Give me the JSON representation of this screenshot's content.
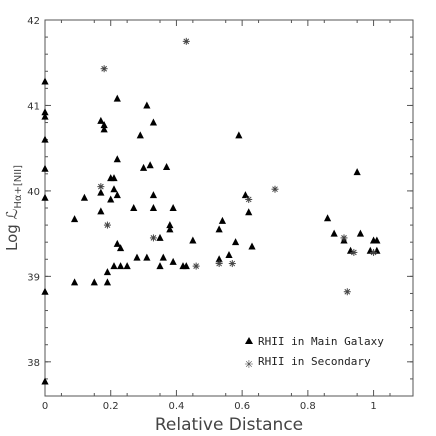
{
  "chart_data": {
    "type": "scatter",
    "title": "",
    "xlabel": "Relative Distance",
    "ylabel_main": "Log ℒ",
    "ylabel_sub": "Hα+[NII]",
    "xlim": [
      0,
      1.12
    ],
    "ylim": [
      37.6,
      42
    ],
    "xticks": [
      0,
      0.2,
      0.4,
      0.6,
      0.8,
      1
    ],
    "xtick_labels": [
      "0",
      "0.2",
      "0.4",
      "0.6",
      "0.8",
      "1"
    ],
    "yticks": [
      38,
      39,
      40,
      41,
      42
    ],
    "ytick_labels": [
      "38",
      "39",
      "40",
      "41",
      "42"
    ],
    "legend_position": "lower-right",
    "series": [
      {
        "name": "RHII in Main Galaxy",
        "marker": "triangle",
        "color": "#000000",
        "points": [
          [
            0,
            41.28
          ],
          [
            0,
            40.92
          ],
          [
            0,
            40.87
          ],
          [
            0,
            40.6
          ],
          [
            0,
            40.26
          ],
          [
            0,
            39.92
          ],
          [
            0,
            38.82
          ],
          [
            0,
            37.77
          ],
          [
            0.09,
            39.67
          ],
          [
            0.09,
            38.93
          ],
          [
            0.12,
            39.92
          ],
          [
            0.15,
            38.93
          ],
          [
            0.17,
            39.76
          ],
          [
            0.17,
            39.98
          ],
          [
            0.17,
            40.82
          ],
          [
            0.18,
            40.77
          ],
          [
            0.18,
            40.72
          ],
          [
            0.19,
            39.05
          ],
          [
            0.19,
            38.93
          ],
          [
            0.2,
            39.9
          ],
          [
            0.2,
            40.15
          ],
          [
            0.21,
            40.15
          ],
          [
            0.21,
            39.12
          ],
          [
            0.21,
            40.02
          ],
          [
            0.22,
            41.08
          ],
          [
            0.22,
            39.95
          ],
          [
            0.22,
            40.37
          ],
          [
            0.22,
            39.38
          ],
          [
            0.23,
            39.33
          ],
          [
            0.23,
            39.12
          ],
          [
            0.25,
            39.12
          ],
          [
            0.27,
            39.8
          ],
          [
            0.28,
            39.22
          ],
          [
            0.29,
            40.65
          ],
          [
            0.3,
            40.27
          ],
          [
            0.31,
            41.0
          ],
          [
            0.31,
            39.22
          ],
          [
            0.32,
            40.3
          ],
          [
            0.33,
            39.95
          ],
          [
            0.33,
            39.8
          ],
          [
            0.33,
            40.8
          ],
          [
            0.35,
            39.12
          ],
          [
            0.35,
            39.45
          ],
          [
            0.36,
            39.22
          ],
          [
            0.37,
            40.28
          ],
          [
            0.38,
            39.6
          ],
          [
            0.38,
            39.55
          ],
          [
            0.39,
            39.8
          ],
          [
            0.39,
            39.17
          ],
          [
            0.42,
            39.12
          ],
          [
            0.43,
            39.12
          ],
          [
            0.45,
            39.42
          ],
          [
            0.53,
            39.2
          ],
          [
            0.53,
            39.55
          ],
          [
            0.54,
            39.65
          ],
          [
            0.56,
            39.25
          ],
          [
            0.58,
            39.4
          ],
          [
            0.59,
            40.65
          ],
          [
            0.61,
            39.95
          ],
          [
            0.62,
            39.75
          ],
          [
            0.63,
            39.35
          ],
          [
            0.86,
            39.68
          ],
          [
            0.88,
            39.5
          ],
          [
            0.91,
            39.42
          ],
          [
            0.93,
            39.3
          ],
          [
            0.95,
            40.22
          ],
          [
            0.96,
            39.5
          ],
          [
            0.99,
            39.3
          ],
          [
            1.0,
            39.42
          ],
          [
            1.01,
            39.42
          ],
          [
            1.01,
            39.3
          ]
        ]
      },
      {
        "name": "RHII in Secondary",
        "marker": "star",
        "color": "#444444",
        "points": [
          [
            0.18,
            41.43
          ],
          [
            0.17,
            40.05
          ],
          [
            0.19,
            39.6
          ],
          [
            0.33,
            39.45
          ],
          [
            0.43,
            41.75
          ],
          [
            0.46,
            39.12
          ],
          [
            0.53,
            39.15
          ],
          [
            0.57,
            39.15
          ],
          [
            0.62,
            39.9
          ],
          [
            0.7,
            40.02
          ],
          [
            0.91,
            39.45
          ],
          [
            0.92,
            38.82
          ],
          [
            0.94,
            39.28
          ],
          [
            1.0,
            39.28
          ]
        ]
      }
    ]
  }
}
